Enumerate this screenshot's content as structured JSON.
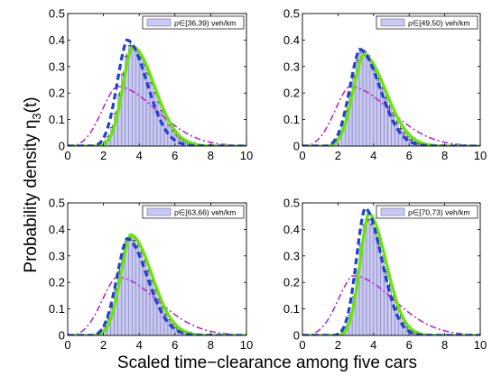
{
  "figure": {
    "ylabel": "Probability density η",
    "ylabel_subscript": "3",
    "ylabel_suffix": "(t)",
    "xlabel": "Scaled time−clearance among five cars"
  },
  "series_styles": {
    "histogram": {
      "fill": "#c8c8f0",
      "stroke": "#8080c0"
    },
    "green_curve": {
      "color": "#66e600"
    },
    "blue_dashed_curve": {
      "color": "#1f3fd6"
    },
    "magenta_dashdot_curve": {
      "color": "#b42cc8"
    }
  },
  "chart_data": [
    {
      "type": "bar",
      "legend": "ρ∈[36,39) veh/km",
      "legend_position": "top-right",
      "xlim": [
        0,
        10
      ],
      "ylim": [
        0,
        0.5
      ],
      "xticks": [
        0,
        2,
        4,
        6,
        8,
        10
      ],
      "yticks": [
        0,
        0.1,
        0.2,
        0.3,
        0.4,
        0.5
      ],
      "bin_width": 0.2,
      "histogram": {
        "mode": 3.5,
        "peak": 0.38,
        "s_left": 0.62,
        "s_right": 1.25,
        "start": 1.4
      },
      "green_curve": {
        "mode": 3.6,
        "peak": 0.375,
        "s_left": 0.65,
        "s_right": 1.25,
        "start": 1.7
      },
      "blue_dashed_curve": {
        "mode": 3.3,
        "peak": 0.4,
        "s_left": 0.68,
        "s_right": 1.12,
        "start": 1.5
      },
      "magenta_dashdot_curve": {
        "mode": 2.7,
        "peak": 0.225,
        "s_left": 1.05,
        "s_right": 2.25,
        "start": 0.35
      }
    },
    {
      "type": "bar",
      "legend": "ρ∈[49,50) veh/km",
      "legend_position": "top-right",
      "xlim": [
        0,
        10
      ],
      "ylim": [
        0,
        0.5
      ],
      "xticks": [
        0,
        2,
        4,
        6,
        8,
        10
      ],
      "yticks": [
        0,
        0.1,
        0.2,
        0.3,
        0.4,
        0.5
      ],
      "bin_width": 0.2,
      "histogram": {
        "mode": 3.3,
        "peak": 0.36,
        "s_left": 0.68,
        "s_right": 1.2,
        "start": 1.3
      },
      "green_curve": {
        "mode": 3.4,
        "peak": 0.345,
        "s_left": 0.72,
        "s_right": 1.28,
        "start": 1.5
      },
      "blue_dashed_curve": {
        "mode": 3.2,
        "peak": 0.365,
        "s_left": 0.7,
        "s_right": 1.15,
        "start": 1.4
      },
      "magenta_dashdot_curve": {
        "mode": 2.6,
        "peak": 0.225,
        "s_left": 1.05,
        "s_right": 2.3,
        "start": 0.35
      }
    },
    {
      "type": "bar",
      "legend": "ρ∈[63,66) veh/km",
      "legend_position": "top-right",
      "xlim": [
        0,
        10
      ],
      "ylim": [
        0,
        0.5
      ],
      "xticks": [
        0,
        2,
        4,
        6,
        8,
        10
      ],
      "yticks": [
        0,
        0.1,
        0.2,
        0.3,
        0.4,
        0.5
      ],
      "bin_width": 0.2,
      "histogram": {
        "mode": 3.4,
        "peak": 0.37,
        "s_left": 0.7,
        "s_right": 1.2,
        "start": 1.4
      },
      "green_curve": {
        "mode": 3.5,
        "peak": 0.38,
        "s_left": 0.68,
        "s_right": 1.2,
        "start": 1.6
      },
      "blue_dashed_curve": {
        "mode": 3.3,
        "peak": 0.365,
        "s_left": 0.72,
        "s_right": 1.15,
        "start": 1.5
      },
      "magenta_dashdot_curve": {
        "mode": 2.7,
        "peak": 0.22,
        "s_left": 1.05,
        "s_right": 2.3,
        "start": 0.35
      }
    },
    {
      "type": "bar",
      "legend": "ρ∈[70,73) veh/km",
      "legend_position": "top-right",
      "xlim": [
        0,
        10
      ],
      "ylim": [
        0,
        0.5
      ],
      "xticks": [
        0,
        2,
        4,
        6,
        8,
        10
      ],
      "yticks": [
        0,
        0.1,
        0.2,
        0.3,
        0.4,
        0.5
      ],
      "bin_width": 0.2,
      "histogram": {
        "mode": 3.6,
        "peak": 0.44,
        "s_left": 0.55,
        "s_right": 1.0,
        "start": 1.8
      },
      "green_curve": {
        "mode": 3.7,
        "peak": 0.46,
        "s_left": 0.58,
        "s_right": 1.0,
        "start": 2.0
      },
      "blue_dashed_curve": {
        "mode": 3.5,
        "peak": 0.48,
        "s_left": 0.58,
        "s_right": 0.95,
        "start": 1.8
      },
      "magenta_dashdot_curve": {
        "mode": 2.8,
        "peak": 0.225,
        "s_left": 1.05,
        "s_right": 2.3,
        "start": 0.35
      }
    }
  ]
}
